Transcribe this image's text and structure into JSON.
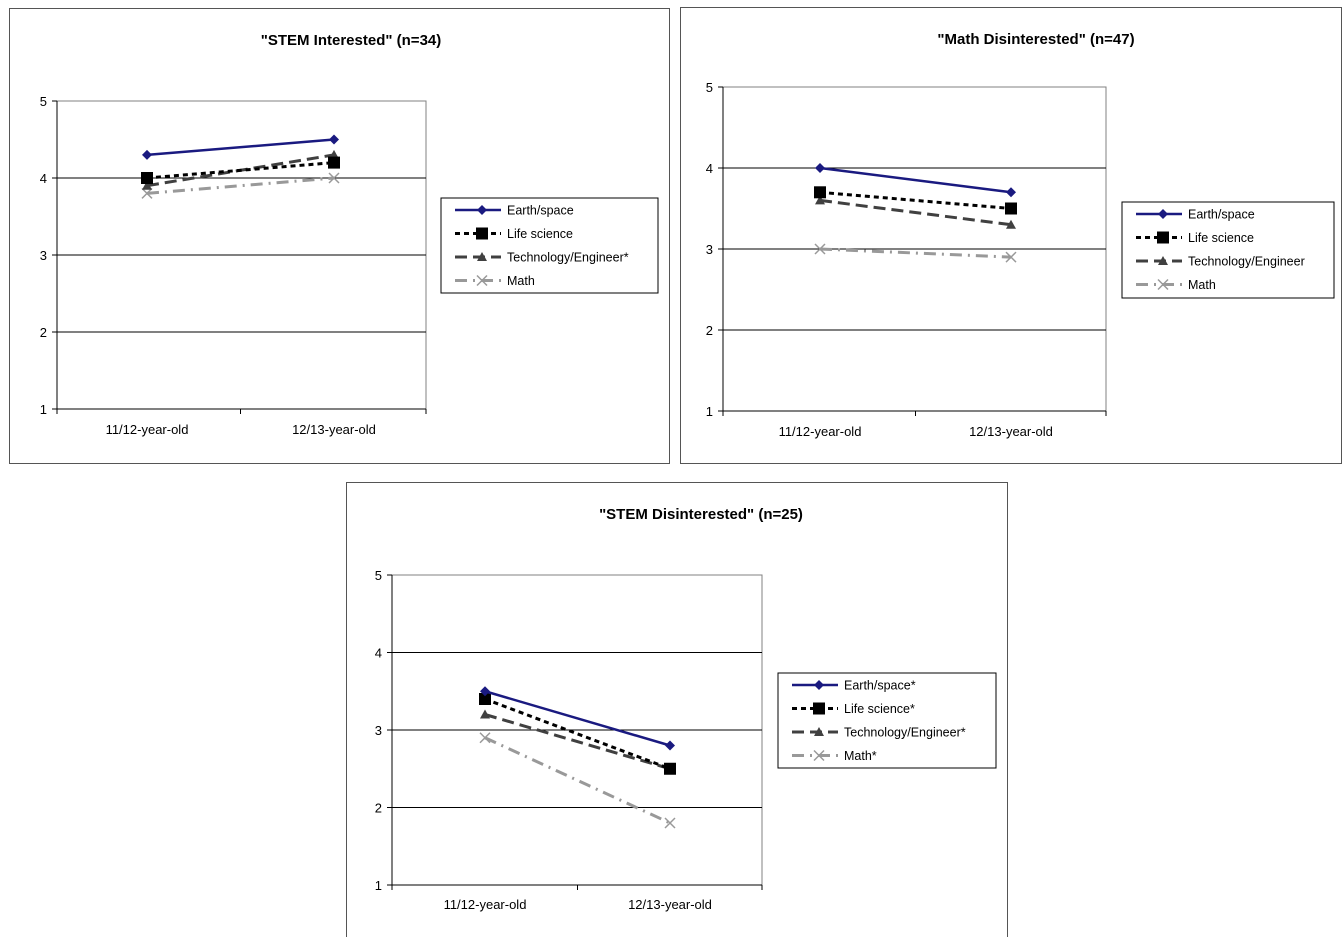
{
  "chart_data": [
    {
      "type": "line",
      "title": "\"STEM Interested\" (n=34)",
      "categories": [
        "11/12-year-old",
        "12/13-year-old"
      ],
      "ylim": [
        1,
        5
      ],
      "yticks": [
        "1",
        "2",
        "3",
        "4",
        "5"
      ],
      "grid": true,
      "legend_position": "right",
      "series": [
        {
          "name": "Earth/space",
          "values": [
            4.3,
            4.5
          ],
          "color": "#1a1a80",
          "marker": "diamond",
          "dash": "solid"
        },
        {
          "name": "Life science",
          "values": [
            4.0,
            4.2
          ],
          "color": "#000000",
          "marker": "square",
          "dash": "short"
        },
        {
          "name": "Technology/Engineer*",
          "values": [
            3.9,
            4.3
          ],
          "color": "#404040",
          "marker": "triangle",
          "dash": "long"
        },
        {
          "name": "Math",
          "values": [
            3.8,
            4.0
          ],
          "color": "#999999",
          "marker": "x",
          "dash": "dashdot"
        }
      ]
    },
    {
      "type": "line",
      "title": "\"Math Disinterested\" (n=47)",
      "categories": [
        "11/12-year-old",
        "12/13-year-old"
      ],
      "ylim": [
        1,
        5
      ],
      "yticks": [
        "1",
        "2",
        "3",
        "4",
        "5"
      ],
      "grid": true,
      "legend_position": "right",
      "series": [
        {
          "name": "Earth/space",
          "values": [
            4.0,
            3.7
          ],
          "color": "#1a1a80",
          "marker": "diamond",
          "dash": "solid"
        },
        {
          "name": "Life science",
          "values": [
            3.7,
            3.5
          ],
          "color": "#000000",
          "marker": "square",
          "dash": "short"
        },
        {
          "name": "Technology/Engineer",
          "values": [
            3.6,
            3.3
          ],
          "color": "#404040",
          "marker": "triangle",
          "dash": "long"
        },
        {
          "name": "Math",
          "values": [
            3.0,
            2.9
          ],
          "color": "#999999",
          "marker": "x",
          "dash": "dashdot"
        }
      ]
    },
    {
      "type": "line",
      "title": "\"STEM Disinterested\" (n=25)",
      "categories": [
        "11/12-year-old",
        "12/13-year-old"
      ],
      "ylim": [
        1,
        5
      ],
      "yticks": [
        "1",
        "2",
        "3",
        "4",
        "5"
      ],
      "grid": true,
      "legend_position": "right",
      "series": [
        {
          "name": "Earth/space*",
          "values": [
            3.5,
            2.8
          ],
          "color": "#1a1a80",
          "marker": "diamond",
          "dash": "solid"
        },
        {
          "name": "Life science*",
          "values": [
            3.4,
            2.5
          ],
          "color": "#000000",
          "marker": "square",
          "dash": "short"
        },
        {
          "name": "Technology/Engineer*",
          "values": [
            3.2,
            2.5
          ],
          "color": "#404040",
          "marker": "triangle",
          "dash": "long"
        },
        {
          "name": "Math*",
          "values": [
            2.9,
            1.8
          ],
          "color": "#999999",
          "marker": "x",
          "dash": "dashdot"
        }
      ]
    }
  ]
}
